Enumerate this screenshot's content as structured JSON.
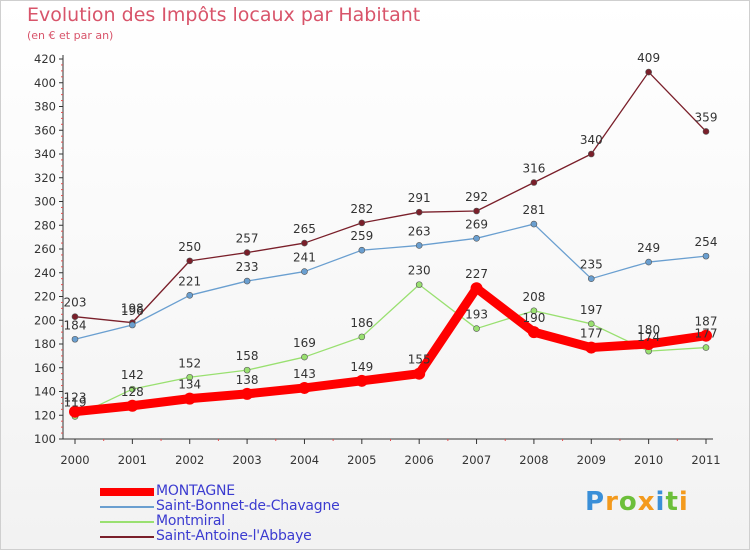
{
  "title": "Evolution des Impôts locaux par Habitant",
  "subtitle": "(en € et par an)",
  "logo": {
    "letters": [
      "P",
      "r",
      "o",
      "x",
      "i",
      "t",
      "i"
    ],
    "colors": [
      "#3a8fd8",
      "#f39a1d",
      "#6cbf3a",
      "#f39a1d",
      "#3a8fd8",
      "#6cbf3a",
      "#f39a1d"
    ]
  },
  "chart_data": {
    "type": "line",
    "title": "Evolution des Impôts locaux par Habitant",
    "ylabel": "(en € et par an)",
    "xlabel": "",
    "ylim": [
      100,
      420
    ],
    "yticks": [
      100,
      120,
      140,
      160,
      180,
      200,
      220,
      240,
      260,
      280,
      300,
      320,
      340,
      360,
      380,
      400,
      420
    ],
    "categories": [
      "2000",
      "2001",
      "2002",
      "2003",
      "2004",
      "2005",
      "2006",
      "2007",
      "2008",
      "2009",
      "2010",
      "2011"
    ],
    "series": [
      {
        "name": "MONTAGNE",
        "color": "#ff0000",
        "values": [
          123,
          128,
          134,
          138,
          143,
          149,
          155,
          227,
          190,
          177,
          180,
          187
        ],
        "labels": [
          "123",
          "128",
          "134",
          "138",
          "143",
          "149",
          "155",
          "227",
          "190",
          "177",
          "180",
          "187"
        ]
      },
      {
        "name": "Saint-Bonnet-de-Chavagne",
        "color": "#6a9fd0",
        "values": [
          184,
          196,
          221,
          233,
          241,
          259,
          263,
          269,
          281,
          235,
          249,
          254
        ],
        "labels": [
          "184",
          "196",
          "221",
          "233",
          "241",
          "259",
          "263",
          "269",
          "281",
          "235",
          "249",
          "254"
        ]
      },
      {
        "name": "Montmiral",
        "color": "#99e070",
        "values": [
          119,
          142,
          152,
          158,
          169,
          186,
          230,
          193,
          208,
          197,
          174,
          177
        ],
        "labels": [
          "119",
          "142",
          "152",
          "158",
          "169",
          "186",
          "230",
          "193",
          "208",
          "197",
          "174",
          "177"
        ]
      },
      {
        "name": "Saint-Antoine-l'Abbaye",
        "color": "#7a1f2a",
        "values": [
          203,
          198,
          250,
          257,
          265,
          282,
          291,
          292,
          316,
          340,
          409,
          359
        ],
        "labels": [
          "203",
          "198",
          "250",
          "257",
          "265",
          "282",
          "291",
          "292",
          "316",
          "340",
          "409",
          "359"
        ]
      }
    ],
    "legend_position": "bottom-left",
    "grid": false
  }
}
